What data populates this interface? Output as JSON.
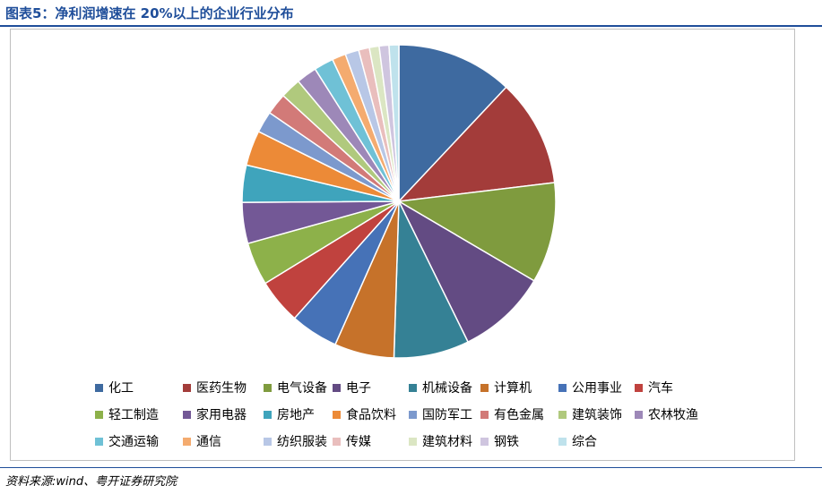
{
  "figure": {
    "title": "图表5：净利润增速在 20%以上的企业行业分布",
    "source": "资料来源:wind、粤开证券研究院"
  },
  "chart_data": {
    "type": "pie",
    "start_angle_deg": 90,
    "direction": "clockwise",
    "legend_placement": "bottom",
    "slices": [
      {
        "label": "化工",
        "value": 11.9,
        "color": "#3e6aa0"
      },
      {
        "label": "医药生物",
        "value": 11.0,
        "color": "#a33c3a"
      },
      {
        "label": "电气设备",
        "value": 10.3,
        "color": "#7f9b3e"
      },
      {
        "label": "电子",
        "value": 9.2,
        "color": "#634b83"
      },
      {
        "label": "机械设备",
        "value": 7.7,
        "color": "#358195"
      },
      {
        "label": "计算机",
        "value": 6.1,
        "color": "#c6722a"
      },
      {
        "label": "公用事业",
        "value": 4.9,
        "color": "#4672b7"
      },
      {
        "label": "汽车",
        "value": 4.6,
        "color": "#c0423e"
      },
      {
        "label": "轻工制造",
        "value": 4.4,
        "color": "#8db14a"
      },
      {
        "label": "家用电器",
        "value": 4.2,
        "color": "#735896"
      },
      {
        "label": "房地产",
        "value": 3.8,
        "color": "#3fa4bc"
      },
      {
        "label": "食品饮料",
        "value": 3.6,
        "color": "#ec8a37"
      },
      {
        "label": "国防军工",
        "value": 2.2,
        "color": "#7c99cd"
      },
      {
        "label": "有色金属",
        "value": 2.2,
        "color": "#d27a78"
      },
      {
        "label": "建筑装饰",
        "value": 2.1,
        "color": "#b0c97d"
      },
      {
        "label": "农林牧渔",
        "value": 2.1,
        "color": "#9d88b8"
      },
      {
        "label": "交通运输",
        "value": 2.0,
        "color": "#6fc1d6"
      },
      {
        "label": "通信",
        "value": 1.4,
        "color": "#f4ab6f"
      },
      {
        "label": "纺织服装",
        "value": 1.4,
        "color": "#b8c7e6"
      },
      {
        "label": "传媒",
        "value": 1.1,
        "color": "#e9bebd"
      },
      {
        "label": "建筑材料",
        "value": 1.0,
        "color": "#dbe6c3"
      },
      {
        "label": "钢铁",
        "value": 1.0,
        "color": "#cfc5df"
      },
      {
        "label": "综合",
        "value": 1.0,
        "color": "#bfe2ec"
      }
    ]
  }
}
